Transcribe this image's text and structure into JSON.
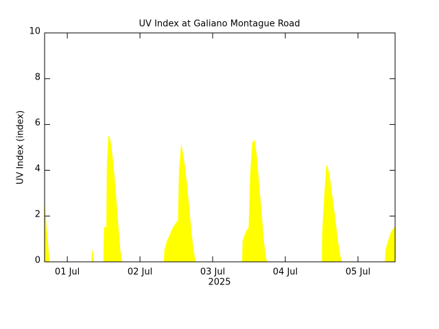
{
  "chart_data": {
    "type": "area",
    "title": "UV Index at Galiano Montague Road",
    "ylabel": "UV Index (index)",
    "xlabel": "2025",
    "color": "#ffff00",
    "xlim": [
      "2025-06-30T16:30",
      "2025-07-05T12:15"
    ],
    "xticks": [
      {
        "value": "2025-07-01",
        "label": "01 Jul"
      },
      {
        "value": "2025-07-02",
        "label": "02 Jul"
      },
      {
        "value": "2025-07-03",
        "label": "03 Jul"
      },
      {
        "value": "2025-07-04",
        "label": "04 Jul"
      },
      {
        "value": "2025-07-05",
        "label": "05 Jul"
      }
    ],
    "ylim": [
      0,
      10
    ],
    "yticks": [
      0,
      2,
      4,
      6,
      8,
      10
    ],
    "x": [
      "2025-06-30T16:30",
      "2025-06-30T17:00",
      "2025-06-30T17:30",
      "2025-06-30T18:00",
      "2025-07-01T08:00",
      "2025-07-01T08:20",
      "2025-07-01T08:40",
      "2025-07-01T12:00",
      "2025-07-01T12:15",
      "2025-07-01T13:00",
      "2025-07-01T13:10",
      "2025-07-01T13:40",
      "2025-07-01T14:00",
      "2025-07-01T14:30",
      "2025-07-01T15:00",
      "2025-07-01T15:30",
      "2025-07-01T16:00",
      "2025-07-01T16:30",
      "2025-07-01T17:00",
      "2025-07-01T17:30",
      "2025-07-01T18:00",
      "2025-07-02T08:00",
      "2025-07-02T08:10",
      "2025-07-02T09:00",
      "2025-07-02T10:00",
      "2025-07-02T11:00",
      "2025-07-02T12:00",
      "2025-07-02T12:40",
      "2025-07-02T13:00",
      "2025-07-02T13:40",
      "2025-07-02T14:00",
      "2025-07-02T14:30",
      "2025-07-02T15:00",
      "2025-07-02T15:30",
      "2025-07-02T16:00",
      "2025-07-02T16:30",
      "2025-07-02T17:00",
      "2025-07-02T17:30",
      "2025-07-02T18:00",
      "2025-07-02T18:20",
      "2025-07-03T09:50",
      "2025-07-03T10:00",
      "2025-07-03T11:00",
      "2025-07-03T12:00",
      "2025-07-03T12:30",
      "2025-07-03T13:10",
      "2025-07-03T13:50",
      "2025-07-03T14:30",
      "2025-07-03T15:00",
      "2025-07-03T15:30",
      "2025-07-03T16:00",
      "2025-07-03T16:30",
      "2025-07-03T17:00",
      "2025-07-03T17:30",
      "2025-07-03T17:50",
      "2025-07-04T12:10",
      "2025-07-04T12:15",
      "2025-07-04T13:00",
      "2025-07-04T13:40",
      "2025-07-04T14:00",
      "2025-07-04T14:30",
      "2025-07-04T15:00",
      "2025-07-04T15:30",
      "2025-07-04T16:00",
      "2025-07-04T16:30",
      "2025-07-04T17:00",
      "2025-07-04T17:30",
      "2025-07-04T18:00",
      "2025-07-04T18:30",
      "2025-07-05T09:00",
      "2025-07-05T09:10",
      "2025-07-05T10:00",
      "2025-07-05T11:00",
      "2025-07-05T12:00",
      "2025-07-05T12:15"
    ],
    "values": [
      2.5,
      1.6,
      0.9,
      0,
      0,
      0.5,
      0,
      0,
      1.5,
      1.5,
      4.2,
      5.5,
      5.4,
      5.0,
      4.4,
      3.7,
      2.9,
      2.0,
      1.2,
      0.4,
      0,
      0,
      0.5,
      0.9,
      1.2,
      1.5,
      1.7,
      1.8,
      4.0,
      5.1,
      4.8,
      4.4,
      3.9,
      3.3,
      2.6,
      1.9,
      1.2,
      0.6,
      0.2,
      0,
      0,
      0.9,
      1.3,
      1.5,
      3.8,
      5.2,
      5.3,
      4.6,
      3.8,
      3.0,
      2.3,
      1.4,
      0.7,
      0.2,
      0,
      0,
      1.2,
      3.0,
      4.2,
      4.1,
      3.8,
      3.3,
      2.8,
      2.3,
      1.8,
      1.2,
      0.7,
      0.3,
      0,
      0,
      0.5,
      0.9,
      1.3,
      1.5,
      1.5
    ]
  }
}
